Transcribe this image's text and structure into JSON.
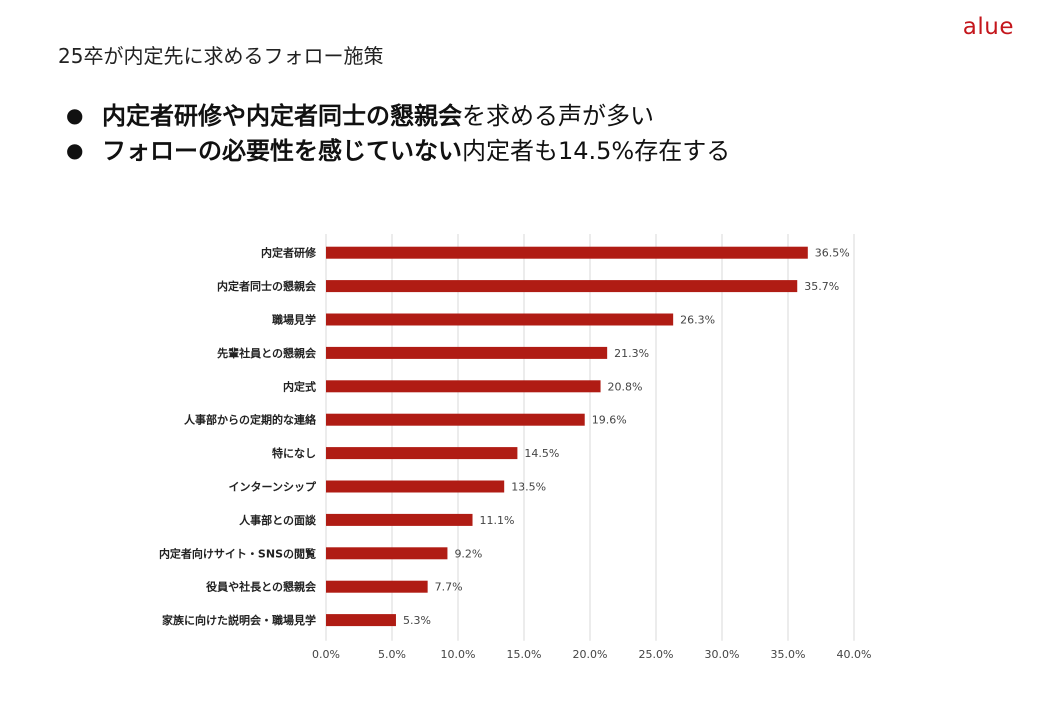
{
  "header": {
    "logo": "alue",
    "title": "25卒が内定先に求めるフォロー施策"
  },
  "bullets": [
    {
      "bold": "内定者研修や内定者同士の懇親会",
      "rest": "を求める声が多い"
    },
    {
      "bold": "フォローの必要性を感じていない",
      "rest": "内定者も14.5%存在する"
    }
  ],
  "colors": {
    "bar": "#b01c14",
    "grid": "#d9d9d9",
    "brand": "#c4161c"
  },
  "chart_data": {
    "type": "bar",
    "orientation": "horizontal",
    "title": "",
    "xlabel": "",
    "ylabel": "",
    "categories": [
      "内定者研修",
      "内定者同士の懇親会",
      "職場見学",
      "先輩社員との懇親会",
      "内定式",
      "人事部からの定期的な連絡",
      "特になし",
      "インターンシップ",
      "人事部との面談",
      "内定者向けサイト・SNSの閲覧",
      "役員や社長との懇親会",
      "家族に向けた説明会・職場見学"
    ],
    "values": [
      36.5,
      35.7,
      26.3,
      21.3,
      20.8,
      19.6,
      14.5,
      13.5,
      11.1,
      9.2,
      7.7,
      5.3
    ],
    "value_labels": [
      "36.5%",
      "35.7%",
      "26.3%",
      "21.3%",
      "20.8%",
      "19.6%",
      "14.5%",
      "13.5%",
      "11.1%",
      "9.2%",
      "7.7%",
      "5.3%"
    ],
    "xlim": [
      0,
      40
    ],
    "xticks": [
      0,
      5,
      10,
      15,
      20,
      25,
      30,
      35,
      40
    ],
    "xtick_labels": [
      "0.0%",
      "5.0%",
      "10.0%",
      "15.0%",
      "20.0%",
      "25.0%",
      "30.0%",
      "35.0%",
      "40.0%"
    ],
    "grid": true,
    "legend": "none"
  }
}
